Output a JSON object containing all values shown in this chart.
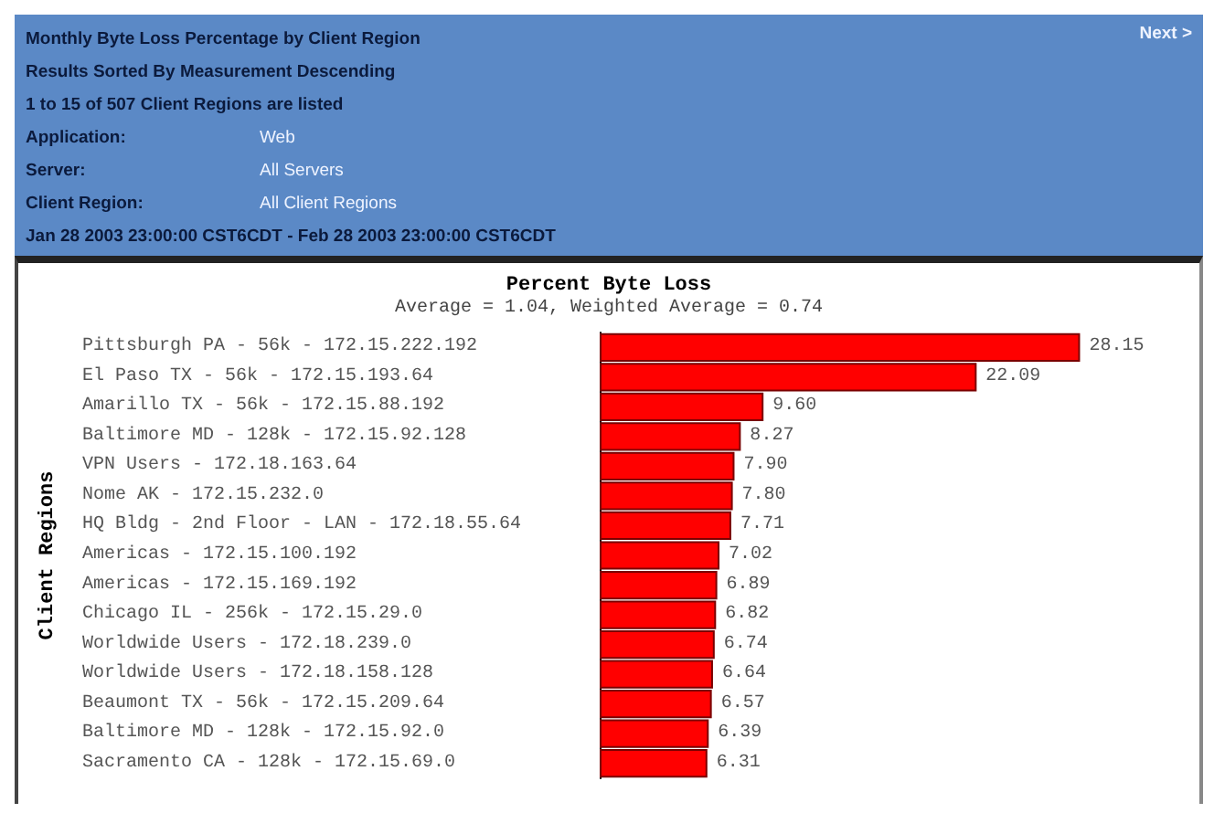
{
  "chart_data": {
    "type": "bar",
    "orientation": "horizontal",
    "title": "Percent Byte Loss",
    "subtitle": "Average = 1.04, Weighted Average = 0.74",
    "ylabel": "Client Regions",
    "categories": [
      "Pittsburgh PA - 56k - 172.15.222.192",
      "El Paso TX - 56k - 172.15.193.64",
      "Amarillo TX - 56k - 172.15.88.192",
      "Baltimore MD - 128k - 172.15.92.128",
      "VPN Users - 172.18.163.64",
      "Nome AK - 172.15.232.0",
      "HQ Bldg - 2nd Floor - LAN - 172.18.55.64",
      "Americas - 172.15.100.192",
      "Americas - 172.15.169.192",
      "Chicago IL - 256k - 172.15.29.0",
      "Worldwide Users - 172.18.239.0",
      "Worldwide Users - 172.18.158.128",
      "Beaumont TX - 56k - 172.15.209.64",
      "Baltimore MD - 128k - 172.15.92.0",
      "Sacramento CA - 128k - 172.15.69.0"
    ],
    "values": [
      28.15,
      22.09,
      9.6,
      8.27,
      7.9,
      7.8,
      7.71,
      7.02,
      6.89,
      6.82,
      6.74,
      6.64,
      6.57,
      6.39,
      6.31
    ],
    "color": "#ff0000",
    "value_labels": [
      "28.15",
      "22.09",
      "9.60",
      "8.27",
      "7.90",
      "7.80",
      "7.71",
      "7.02",
      "6.89",
      "6.82",
      "6.74",
      "6.64",
      "6.57",
      "6.39",
      "6.31"
    ],
    "annotations": [
      "Monthly Byte Loss Percentage by Client Region",
      "Results Sorted By Measurement Descending",
      "1 to 15 of 507 Client Regions are listed",
      "Application:",
      "Web",
      "Server:",
      "All Servers",
      "Client Region:",
      "All Client Regions",
      "Jan 28 2003 23:00:00 CST6CDT  -  Feb 28 2003 23:00:00 CST6CDT",
      "Next >"
    ]
  }
}
